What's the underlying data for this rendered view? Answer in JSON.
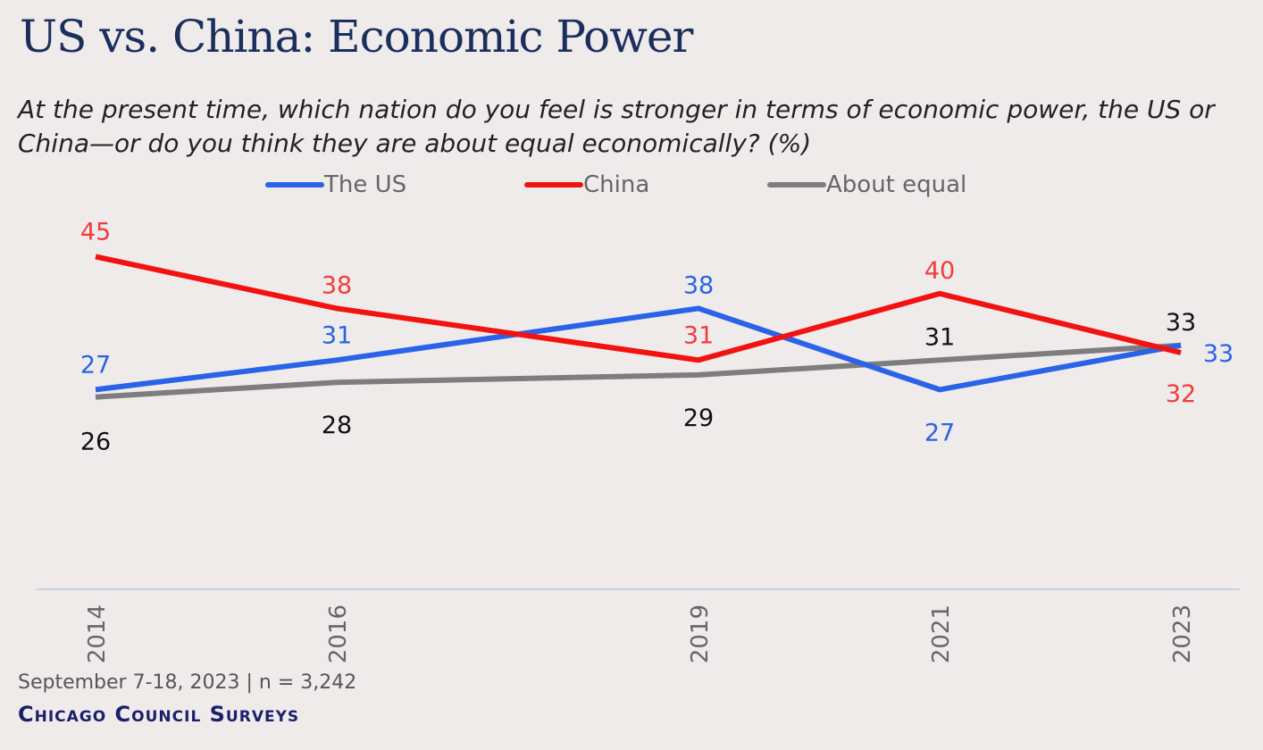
{
  "chart_data": {
    "type": "line",
    "title": "US vs. China: Economic Power",
    "subtitle": "At the present time, which nation do you feel is stronger in terms of economic power, the US or China—or do you think they are about equal economically? (%)",
    "x": [
      "2014",
      "2016",
      "2019",
      "2021",
      "2023"
    ],
    "x_numeric": [
      2014,
      2016,
      2019,
      2021,
      2023
    ],
    "xlim": [
      2014,
      2023
    ],
    "ylim": [
      0,
      50
    ],
    "xlabel": "",
    "ylabel": "",
    "grid": false,
    "legend_position": "top",
    "series": [
      {
        "name": "The US",
        "color": "#2a62e8",
        "values": [
          27,
          31,
          38,
          27,
          33
        ]
      },
      {
        "name": "China",
        "color": "#f21212",
        "values": [
          45,
          38,
          31,
          40,
          32
        ]
      },
      {
        "name": "About equal",
        "color": "#7d7d7d",
        "values": [
          26,
          28,
          29,
          31,
          33
        ]
      }
    ],
    "label_colors": {
      "The US": "#2a62e8",
      "China": "#f23c3c",
      "About equal": "#111111"
    }
  },
  "footer": {
    "note": "September 7-18, 2023 | n = 3,242",
    "brand": "Chicago Council Surveys"
  }
}
